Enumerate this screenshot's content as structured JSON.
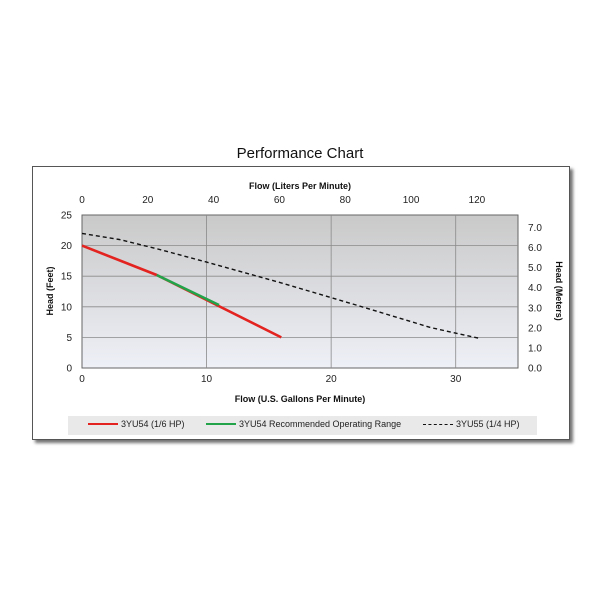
{
  "chart_data": {
    "type": "line",
    "title": "Performance Chart",
    "xlabel": "Flow (U.S. Gallons Per Minute)",
    "x2label": "Flow (Liters Per Minute)",
    "ylabel": "Head (Feet)",
    "y2label": "Head (Meters)",
    "xlim": [
      0,
      35
    ],
    "x2lim": [
      0,
      132.5
    ],
    "ylim": [
      0,
      25
    ],
    "y2lim": [
      0,
      7.62
    ],
    "xticks": [
      0,
      10,
      20,
      30
    ],
    "x2ticks": [
      0,
      20,
      40,
      60,
      80,
      100,
      120
    ],
    "yticks": [
      0,
      5,
      10,
      15,
      20,
      25
    ],
    "y2ticks": [
      "0.0",
      "1.0",
      "2.0",
      "3.0",
      "4.0",
      "5.0",
      "6.0",
      "7.0"
    ],
    "grid": true,
    "legend_position": "bottom",
    "series": [
      {
        "name": "3YU54 (1/6 HP)",
        "color": "#e3231f",
        "style": "solid",
        "x": [
          0,
          6,
          16
        ],
        "y": [
          20,
          15.2,
          5
        ]
      },
      {
        "name": "3YU54 Recommended Operating Range",
        "color": "#22a34a",
        "style": "solid",
        "x": [
          6,
          11
        ],
        "y": [
          15.2,
          10.3
        ]
      },
      {
        "name": "3YU55 (1/4 HP)",
        "color": "#111111",
        "style": "dashed",
        "x": [
          0,
          3,
          6,
          10,
          16,
          22,
          28,
          32
        ],
        "y": [
          22,
          21,
          19.5,
          17.3,
          13.9,
          10.3,
          6.6,
          4.8
        ]
      }
    ]
  }
}
